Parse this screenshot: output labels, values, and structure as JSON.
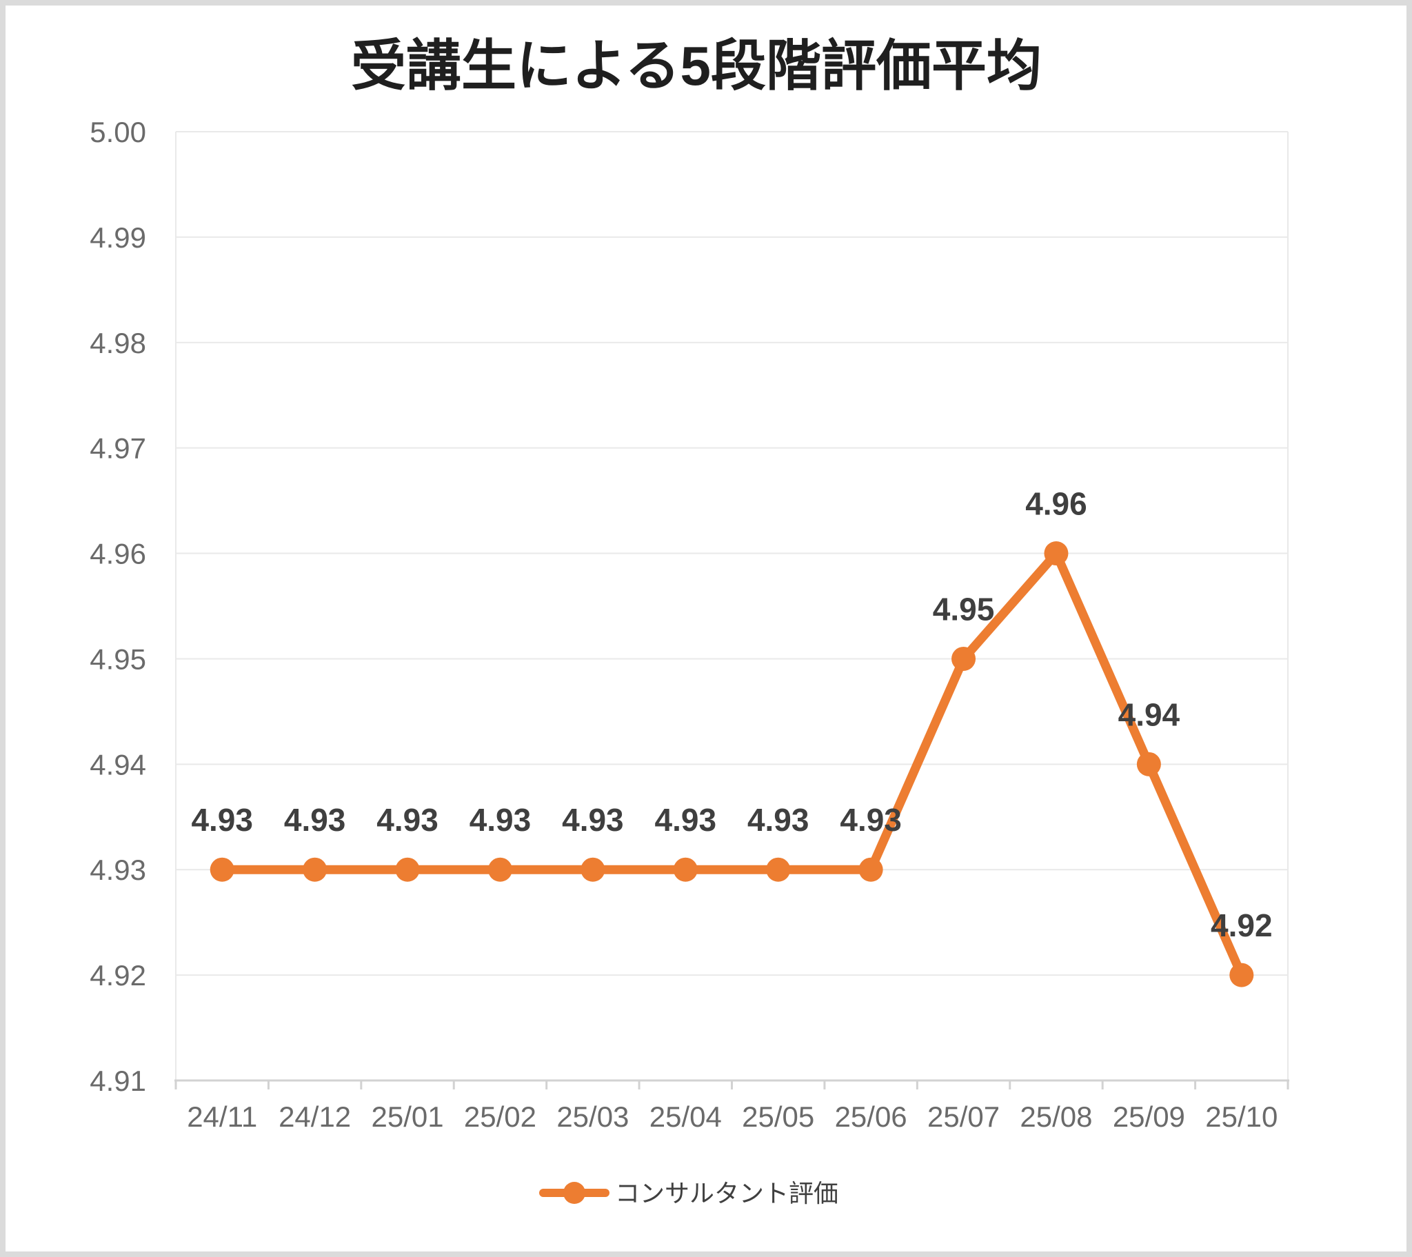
{
  "chart_data": {
    "type": "line",
    "title": "受講生による5段階評価平均",
    "categories": [
      "24/11",
      "24/12",
      "25/01",
      "25/02",
      "25/03",
      "25/04",
      "25/05",
      "25/06",
      "25/07",
      "25/08",
      "25/09",
      "25/10"
    ],
    "series": [
      {
        "name": "コンサルタント評価",
        "values": [
          4.93,
          4.93,
          4.93,
          4.93,
          4.93,
          4.93,
          4.93,
          4.93,
          4.95,
          4.96,
          4.94,
          4.92
        ]
      }
    ],
    "data_labels": [
      "4.93",
      "4.93",
      "4.93",
      "4.93",
      "4.93",
      "4.93",
      "4.93",
      "4.93",
      "4.95",
      "4.96",
      "4.94",
      "4.92"
    ],
    "ylim": [
      4.91,
      5.0
    ],
    "ytick_step": 0.01,
    "ytick_labels": [
      "5.00",
      "4.99",
      "4.98",
      "4.97",
      "4.96",
      "4.95",
      "4.94",
      "4.93",
      "4.92",
      "4.91"
    ],
    "grid": true,
    "legend_position": "bottom",
    "colors": {
      "series": "#ED7D31",
      "grid": "#E9E9E9",
      "axis": "#D2D2D2",
      "tick_label": "#6A6A6A",
      "data_label": "#3F3F3F",
      "title": "#1F1F1F",
      "legend_label": "#404040",
      "frame": "#DBDBDB",
      "background": "#FFFFFF"
    }
  }
}
